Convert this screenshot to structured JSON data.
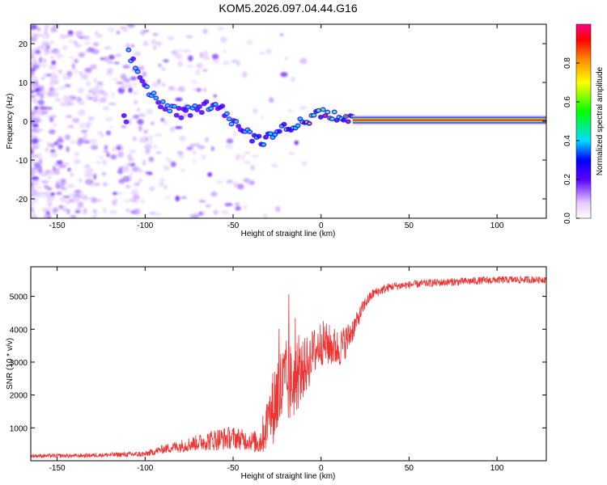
{
  "title": "KOM5.2026.097.04.44.G16",
  "chart_data": [
    {
      "type": "heatmap",
      "name": "spectrogram",
      "xlabel": "Height of straight line (km)",
      "ylabel": "Frequency (Hz)",
      "xlim": [
        -165,
        128
      ],
      "ylim": [
        -25,
        25
      ],
      "x_ticks": [
        -150,
        -100,
        -50,
        0,
        50,
        100
      ],
      "y_ticks": [
        -20,
        -10,
        0,
        10,
        20
      ],
      "colorbar": {
        "label": "Normalized spectral amplitude",
        "range": [
          0.0,
          1.0
        ],
        "ticks": [
          0.0,
          0.2,
          0.4,
          0.6,
          0.8
        ]
      },
      "ridge": [
        {
          "x": -110,
          "y": 18
        },
        {
          "x": -100,
          "y": 9
        },
        {
          "x": -90,
          "y": 4
        },
        {
          "x": -80,
          "y": 2
        },
        {
          "x": -70,
          "y": 3
        },
        {
          "x": -60,
          "y": 5
        },
        {
          "x": -50,
          "y": 0
        },
        {
          "x": -40,
          "y": -4
        },
        {
          "x": -33,
          "y": -5
        },
        {
          "x": -25,
          "y": -2
        },
        {
          "x": -15,
          "y": -1
        },
        {
          "x": -5,
          "y": 1
        },
        {
          "x": 0,
          "y": 2
        },
        {
          "x": 10,
          "y": 1
        },
        {
          "x": 18,
          "y": 0.3
        },
        {
          "x": 128,
          "y": 0.3
        }
      ]
    },
    {
      "type": "line",
      "name": "snr",
      "xlabel": "Height of straight line (km)",
      "ylabel": "SNR (10 * v/v)",
      "xlim": [
        -165,
        128
      ],
      "ylim": [
        0,
        5900
      ],
      "x_ticks": [
        -150,
        -100,
        -50,
        0,
        50,
        100
      ],
      "y_ticks": [
        1000,
        2000,
        3000,
        4000,
        5000
      ],
      "color": "#ee3333",
      "x": [
        -165,
        -140,
        -120,
        -100,
        -90,
        -80,
        -70,
        -60,
        -50,
        -40,
        -35,
        -30,
        -25,
        -20,
        -15,
        -10,
        -5,
        0,
        5,
        10,
        15,
        20,
        25,
        30,
        40,
        50,
        60,
        80,
        100,
        128
      ],
      "y": [
        150,
        150,
        180,
        200,
        350,
        450,
        550,
        650,
        700,
        600,
        550,
        1200,
        2000,
        2300,
        2400,
        2800,
        3200,
        3600,
        3500,
        3400,
        3700,
        4200,
        4800,
        5100,
        5300,
        5350,
        5400,
        5450,
        5500,
        5520
      ],
      "noise": [
        60,
        60,
        70,
        90,
        130,
        200,
        250,
        350,
        350,
        300,
        400,
        900,
        1400,
        1400,
        1100,
        900,
        800,
        700,
        650,
        600,
        500,
        300,
        200,
        150,
        130,
        120,
        120,
        120,
        120,
        120
      ]
    }
  ]
}
